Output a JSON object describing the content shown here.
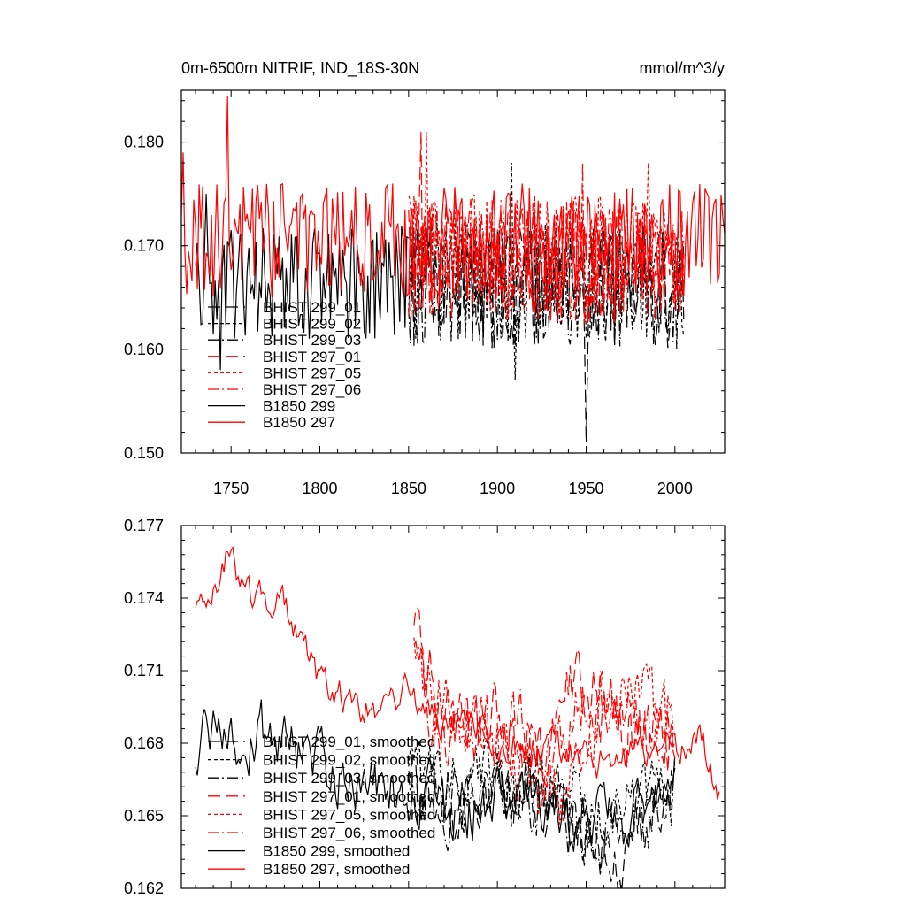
{
  "chart_data": [
    {
      "type": "line",
      "title": "0m-6500m NITRIF, IND_18S-30N",
      "units": "mmol/m^3/y",
      "xlim": [
        1722,
        2028
      ],
      "ylim": [
        0.15,
        0.185
      ],
      "xticks": [
        1750,
        1800,
        1850,
        1900,
        1950,
        2000
      ],
      "yticks": [
        0.15,
        0.16,
        0.17,
        0.18
      ],
      "ytick_labels": [
        "0.150",
        "0.160",
        "0.170",
        "0.180"
      ],
      "legend_position": "lower-left",
      "series": [
        {
          "name": "BHIST 299_01",
          "color": "#000000",
          "dash": "long-dash",
          "x_range": [
            1850,
            2005
          ],
          "mean": 0.166,
          "amp": 0.006,
          "seed": 11,
          "anchors": [
            [
              1950,
              0.151
            ]
          ]
        },
        {
          "name": "BHIST 299_02",
          "color": "#000000",
          "dash": "short-dash",
          "x_range": [
            1850,
            2005
          ],
          "mean": 0.1665,
          "amp": 0.006,
          "seed": 12,
          "anchors": [
            [
              1908,
              0.178
            ],
            [
              1910,
              0.157
            ]
          ]
        },
        {
          "name": "BHIST 299_03",
          "color": "#000000",
          "dash": "dash-dot",
          "x_range": [
            1850,
            2005
          ],
          "mean": 0.166,
          "amp": 0.006,
          "seed": 13,
          "anchors": []
        },
        {
          "name": "BHIST 297_01",
          "color": "#ff0000",
          "dash": "long-dash",
          "x_range": [
            1850,
            2005
          ],
          "mean": 0.1685,
          "amp": 0.006,
          "seed": 21,
          "anchors": [
            [
              1857,
              0.181
            ]
          ]
        },
        {
          "name": "BHIST 297_05",
          "color": "#ff0000",
          "dash": "short-dash",
          "x_range": [
            1850,
            2005
          ],
          "mean": 0.169,
          "amp": 0.006,
          "seed": 22,
          "anchors": [
            [
              1860,
              0.181
            ],
            [
              1985,
              0.178
            ]
          ]
        },
        {
          "name": "BHIST 297_06",
          "color": "#ff0000",
          "dash": "dash-dot",
          "x_range": [
            1850,
            2005
          ],
          "mean": 0.1685,
          "amp": 0.006,
          "seed": 23,
          "anchors": [
            [
              1948,
              0.178
            ]
          ]
        },
        {
          "name": "B1850 299",
          "color": "#000000",
          "dash": "solid",
          "x_range": [
            1730,
            1850
          ],
          "mean": 0.1665,
          "amp": 0.0055,
          "seed": 31,
          "anchors": [
            [
              1736,
              0.175
            ],
            [
              1744,
              0.158
            ]
          ]
        },
        {
          "name": "B1850 297",
          "color": "#ff0000",
          "dash": "solid",
          "x_range": [
            1722,
            2028
          ],
          "mean": 0.1705,
          "amp": 0.0055,
          "seed": 32,
          "anchors": [
            [
              1748,
              0.1845
            ],
            [
              1723,
              0.179
            ]
          ]
        }
      ]
    },
    {
      "type": "line",
      "xlim": [
        1722,
        2028
      ],
      "ylim": [
        0.162,
        0.177
      ],
      "xticks": [
        1750,
        1800,
        1850,
        1900,
        1950,
        2000
      ],
      "yticks": [
        0.162,
        0.165,
        0.168,
        0.171,
        0.174,
        0.177
      ],
      "ytick_labels": [
        "0.162",
        "0.165",
        "0.168",
        "0.171",
        "0.174",
        "0.177"
      ],
      "legend_position": "lower-left",
      "series": [
        {
          "name": "BHIST 299_01, smoothed",
          "color": "#000000",
          "dash": "long-dash",
          "x_range": [
            1850,
            2000
          ],
          "amp": 0.0012,
          "seed": 41,
          "path": [
            [
              1850,
              0.1665
            ],
            [
              1880,
              0.1655
            ],
            [
              1910,
              0.1662
            ],
            [
              1935,
              0.1655
            ],
            [
              1955,
              0.163
            ],
            [
              1975,
              0.164
            ],
            [
              2000,
              0.1665
            ]
          ]
        },
        {
          "name": "BHIST 299_02, smoothed",
          "color": "#000000",
          "dash": "short-dash",
          "x_range": [
            1850,
            2000
          ],
          "amp": 0.0012,
          "seed": 42,
          "path": [
            [
              1850,
              0.1665
            ],
            [
              1880,
              0.166
            ],
            [
              1905,
              0.167
            ],
            [
              1935,
              0.166
            ],
            [
              1960,
              0.165
            ],
            [
              1985,
              0.1655
            ],
            [
              2000,
              0.1662
            ]
          ]
        },
        {
          "name": "BHIST 299_03, smoothed",
          "color": "#000000",
          "dash": "dash-dot",
          "x_range": [
            1850,
            2000
          ],
          "amp": 0.0012,
          "seed": 43,
          "path": [
            [
              1850,
              0.166
            ],
            [
              1880,
              0.1655
            ],
            [
              1905,
              0.1662
            ],
            [
              1935,
              0.165
            ],
            [
              1960,
              0.164
            ],
            [
              1985,
              0.1648
            ],
            [
              2000,
              0.1668
            ]
          ]
        },
        {
          "name": "BHIST 297_01, smoothed",
          "color": "#ff0000",
          "dash": "long-dash",
          "x_range": [
            1853,
            2000
          ],
          "amp": 0.0013,
          "seed": 51,
          "path": [
            [
              1853,
              0.1732
            ],
            [
              1865,
              0.17
            ],
            [
              1885,
              0.169
            ],
            [
              1905,
              0.169
            ],
            [
              1925,
              0.167
            ],
            [
              1945,
              0.171
            ],
            [
              1965,
              0.169
            ],
            [
              1985,
              0.1685
            ],
            [
              2000,
              0.168
            ]
          ]
        },
        {
          "name": "BHIST 297_05, smoothed",
          "color": "#ff0000",
          "dash": "short-dash",
          "x_range": [
            1853,
            2000
          ],
          "amp": 0.0013,
          "seed": 52,
          "path": [
            [
              1853,
              0.1725
            ],
            [
              1865,
              0.1695
            ],
            [
              1885,
              0.1685
            ],
            [
              1905,
              0.168
            ],
            [
              1935,
              0.165
            ],
            [
              1955,
              0.169
            ],
            [
              1980,
              0.17
            ],
            [
              2000,
              0.1685
            ]
          ]
        },
        {
          "name": "BHIST 297_06, smoothed",
          "color": "#ff0000",
          "dash": "dash-dot",
          "x_range": [
            1853,
            2000
          ],
          "amp": 0.0013,
          "seed": 53,
          "path": [
            [
              1853,
              0.172
            ],
            [
              1865,
              0.169
            ],
            [
              1885,
              0.168
            ],
            [
              1905,
              0.169
            ],
            [
              1930,
              0.167
            ],
            [
              1950,
              0.17
            ],
            [
              1975,
              0.169
            ],
            [
              2000,
              0.168
            ]
          ]
        },
        {
          "name": "B1850 299, smoothed",
          "color": "#000000",
          "dash": "solid",
          "x_range": [
            1730,
            2000
          ],
          "amp": 0.001,
          "seed": 61,
          "path": [
            [
              1730,
              0.1678
            ],
            [
              1738,
              0.1682
            ],
            [
              1745,
              0.169
            ],
            [
              1755,
              0.168
            ],
            [
              1770,
              0.1685
            ],
            [
              1790,
              0.1675
            ],
            [
              1820,
              0.1665
            ],
            [
              1850,
              0.166
            ],
            [
              1880,
              0.165
            ],
            [
              1910,
              0.166
            ],
            [
              1940,
              0.165
            ],
            [
              1970,
              0.1645
            ],
            [
              2000,
              0.167
            ]
          ]
        },
        {
          "name": "B1850 297, smoothed",
          "color": "#ff0000",
          "dash": "solid",
          "x_range": [
            1730,
            2025
          ],
          "amp": 0.0006,
          "seed": 62,
          "path": [
            [
              1730,
              0.174
            ],
            [
              1740,
              0.1742
            ],
            [
              1748,
              0.176
            ],
            [
              1755,
              0.1748
            ],
            [
              1762,
              0.1738
            ],
            [
              1772,
              0.174
            ],
            [
              1780,
              0.1738
            ],
            [
              1792,
              0.1722
            ],
            [
              1800,
              0.1705
            ],
            [
              1812,
              0.17
            ],
            [
              1822,
              0.169
            ],
            [
              1840,
              0.17
            ],
            [
              1850,
              0.1702
            ],
            [
              1865,
              0.169
            ],
            [
              1880,
              0.1688
            ],
            [
              1900,
              0.1682
            ],
            [
              1920,
              0.1676
            ],
            [
              1940,
              0.1676
            ],
            [
              1960,
              0.1672
            ],
            [
              1980,
              0.1675
            ],
            [
              2000,
              0.168
            ],
            [
              2015,
              0.1682
            ],
            [
              2025,
              0.166
            ]
          ]
        }
      ]
    }
  ]
}
